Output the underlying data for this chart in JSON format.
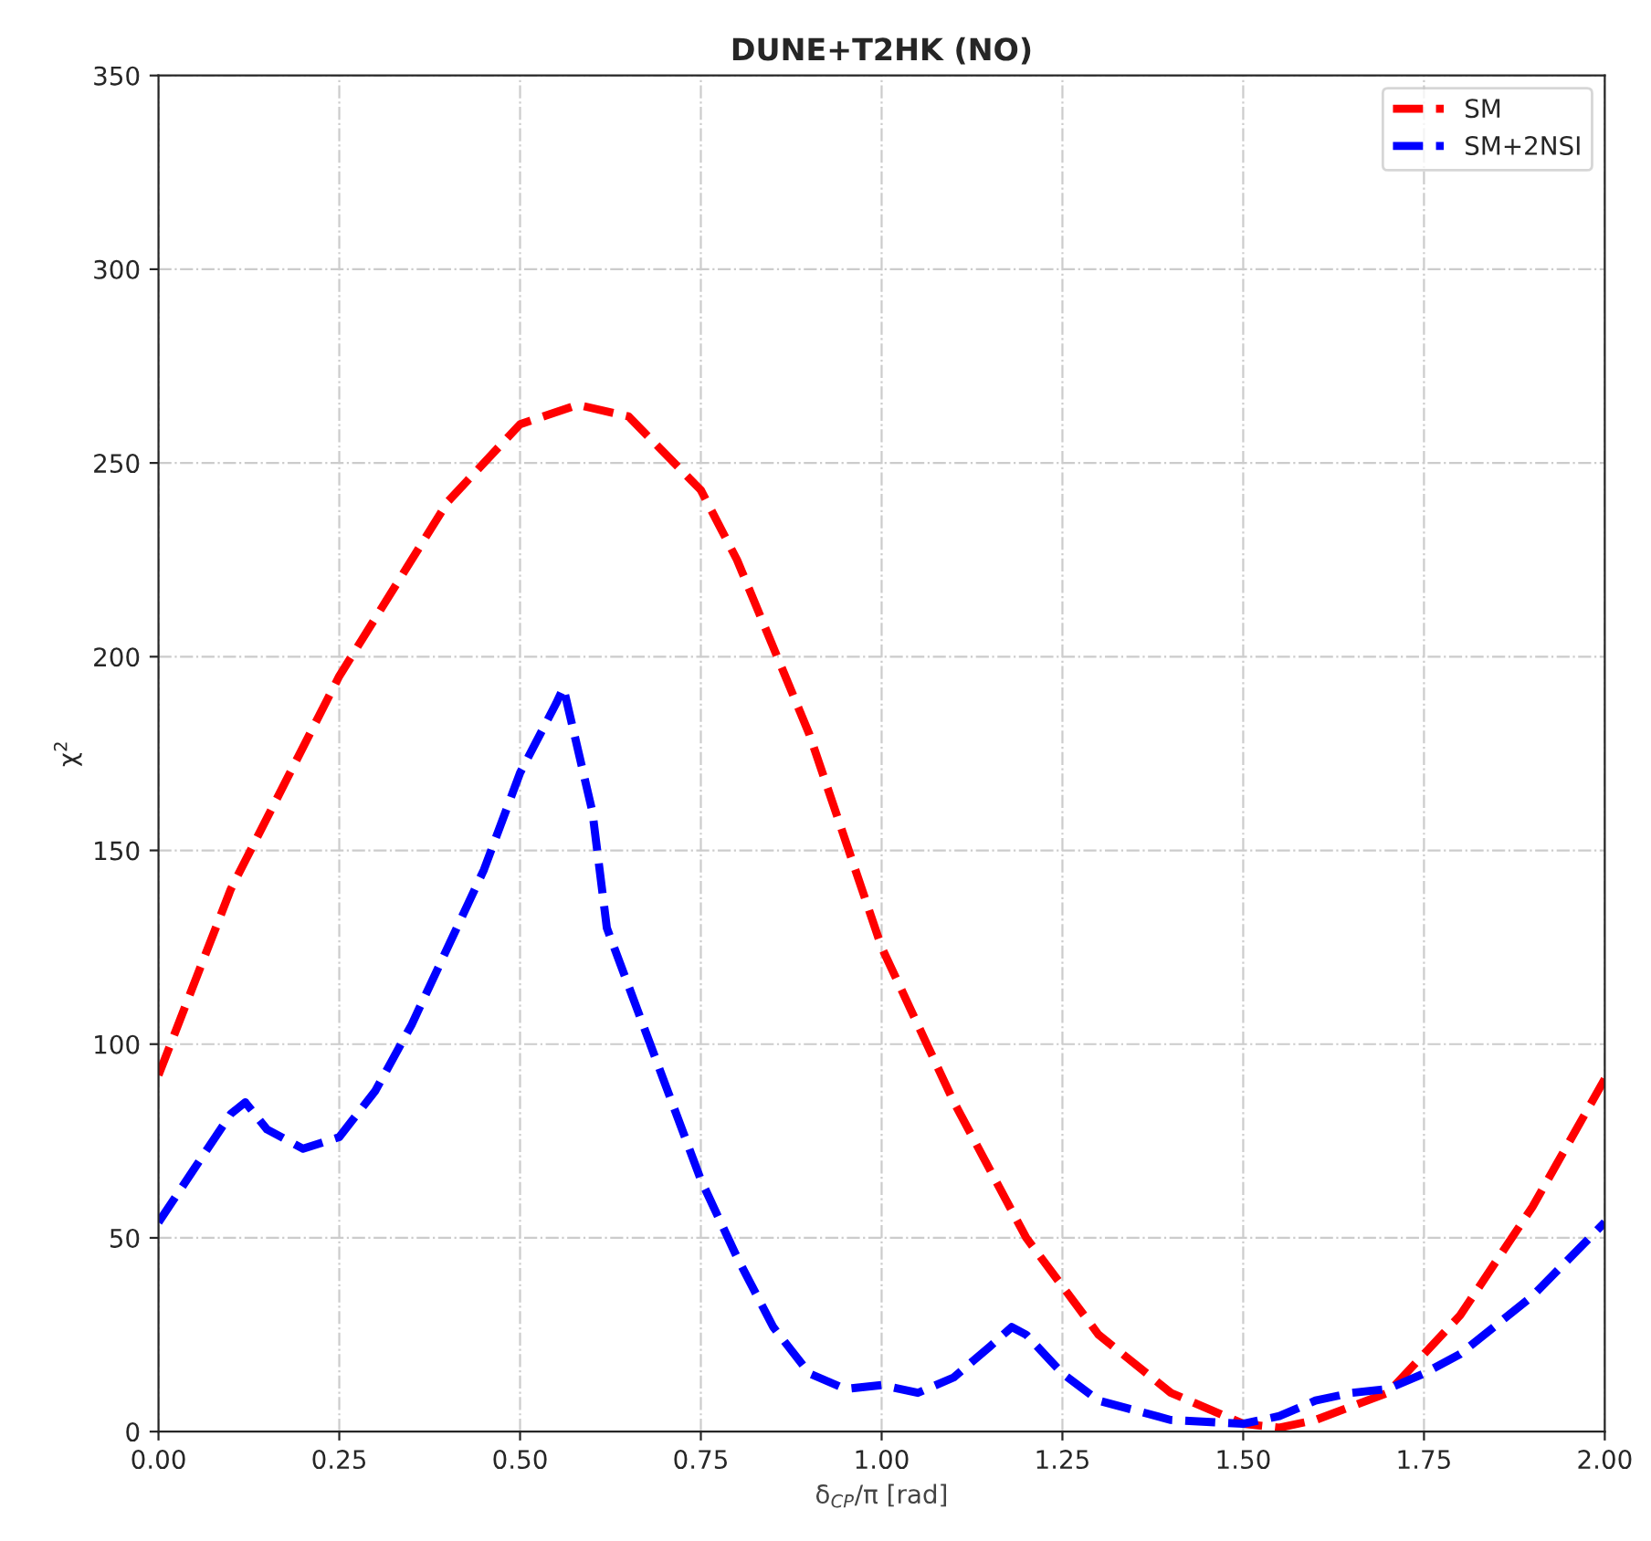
{
  "chart_data": {
    "type": "line",
    "title": "DUNE+T2HK (NO)",
    "xlabel": "δ$_{CP}$/π [rad]",
    "ylabel": "χ$^{2}$",
    "xlim": [
      0,
      2
    ],
    "ylim": [
      0,
      350
    ],
    "xticks": [
      {
        "value": 0,
        "label": "0.00"
      },
      {
        "value": 0.25,
        "label": "0.25"
      },
      {
        "value": 0.5,
        "label": "0.50"
      },
      {
        "value": 0.75,
        "label": "0.75"
      },
      {
        "value": 1,
        "label": "1.00"
      },
      {
        "value": 1.25,
        "label": "1.25"
      },
      {
        "value": 1.5,
        "label": "1.50"
      },
      {
        "value": 1.75,
        "label": "1.75"
      },
      {
        "value": 2,
        "label": "2.00"
      }
    ],
    "yticks": [
      0,
      50,
      100,
      150,
      200,
      250,
      300,
      350
    ],
    "grid": true,
    "legend": "top right",
    "line_style": "dashed",
    "marker": "none",
    "series": [
      {
        "name": "SM",
        "color": "#ff0000",
        "x": [
          0,
          0.1,
          0.25,
          0.4,
          0.5,
          0.58,
          0.65,
          0.75,
          0.8,
          0.9,
          1.0,
          1.1,
          1.2,
          1.3,
          1.4,
          1.5,
          1.55,
          1.6,
          1.7,
          1.8,
          1.9,
          2.0
        ],
        "values": [
          92,
          140,
          195,
          240,
          260,
          265,
          262,
          243,
          225,
          180,
          125,
          85,
          50,
          25,
          10,
          2,
          1,
          3,
          10,
          30,
          58,
          91
        ]
      },
      {
        "name": "SM+2NSI",
        "color": "#0000ff",
        "x": [
          0,
          0.05,
          0.1,
          0.12,
          0.15,
          0.2,
          0.25,
          0.3,
          0.35,
          0.4,
          0.45,
          0.5,
          0.55,
          0.56,
          0.6,
          0.62,
          0.7,
          0.75,
          0.8,
          0.85,
          0.9,
          0.95,
          1.0,
          1.05,
          1.1,
          1.15,
          1.18,
          1.2,
          1.25,
          1.3,
          1.4,
          1.5,
          1.55,
          1.6,
          1.65,
          1.7,
          1.75,
          1.8,
          1.9,
          2.0
        ],
        "values": [
          54,
          68,
          82,
          85,
          78,
          73,
          76,
          88,
          105,
          125,
          145,
          170,
          188,
          192,
          160,
          130,
          90,
          65,
          45,
          27,
          15,
          11,
          12,
          10,
          14,
          22,
          27,
          25,
          15,
          8,
          3,
          2,
          4,
          8,
          10,
          11,
          15,
          20,
          35,
          54
        ]
      }
    ]
  }
}
